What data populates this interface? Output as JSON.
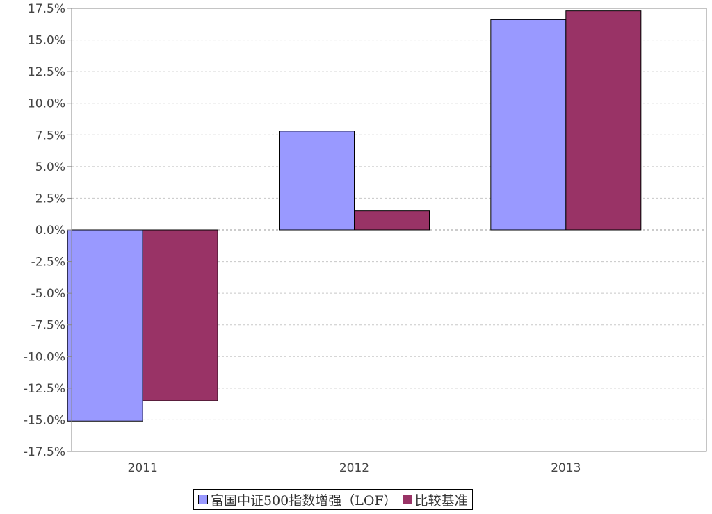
{
  "chart_data": {
    "type": "bar",
    "categories": [
      "2011",
      "2012",
      "2013"
    ],
    "series": [
      {
        "name": "富国中证500指数增强（LOF）",
        "values": [
          -15.1,
          7.8,
          16.6
        ],
        "color": "#9999ff"
      },
      {
        "name": "比较基准",
        "values": [
          -13.5,
          1.5,
          17.3
        ],
        "color": "#993366"
      }
    ],
    "ylim": [
      -17.5,
      17.5
    ],
    "yticks": [
      {
        "value": 17.5,
        "label": "17.5%"
      },
      {
        "value": 15.0,
        "label": "15.0%"
      },
      {
        "value": 12.5,
        "label": "12.5%"
      },
      {
        "value": 10.0,
        "label": "10.0%"
      },
      {
        "value": 7.5,
        "label": "7.5%"
      },
      {
        "value": 5.0,
        "label": "5.0%"
      },
      {
        "value": 2.5,
        "label": "2.5%"
      },
      {
        "value": 0.0,
        "label": "0.0%"
      },
      {
        "value": -2.5,
        "label": "-2.5%"
      },
      {
        "value": -5.0,
        "label": "-5.0%"
      },
      {
        "value": -7.5,
        "label": "-7.5%"
      },
      {
        "value": -10.0,
        "label": "-10.0%"
      },
      {
        "value": -12.5,
        "label": "-12.5%"
      },
      {
        "value": -15.0,
        "label": "-15.0%"
      },
      {
        "value": -17.5,
        "label": "-17.5%"
      }
    ],
    "grid": true,
    "legend": "bottom-center",
    "grid_color": "#c8c8c8",
    "axis_color": "#888888"
  }
}
